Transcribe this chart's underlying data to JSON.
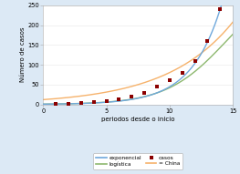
{
  "title": "",
  "xlabel": "periodos desde o inicio",
  "ylabel": "Número de casos",
  "xlim": [
    0,
    15
  ],
  "ylim": [
    0,
    250
  ],
  "yticks": [
    0,
    50,
    100,
    150,
    200,
    250
  ],
  "xticks": [
    0,
    5,
    10,
    15
  ],
  "bg_color": "#dce9f5",
  "plot_bg_color": "#ffffff",
  "exponencial_color": "#6fa8dc",
  "logistica_color": "#8db86e",
  "china_color": "#f6b26b",
  "casos_color": "#8b0000",
  "casos_x": [
    1,
    2,
    3,
    4,
    5,
    6,
    7,
    8,
    9,
    10,
    11,
    12,
    13,
    14
  ],
  "casos_y": [
    1,
    2,
    3,
    5,
    8,
    13,
    20,
    30,
    45,
    62,
    80,
    110,
    160,
    240
  ],
  "exp_a": 0.42,
  "exp_b": 0.425,
  "log_L": 320,
  "log_k": 0.42,
  "log_x0": 14.5,
  "china_a": 12,
  "china_b": 0.19,
  "gridcolor": "#e0e0e0",
  "grid_alpha": 0.8
}
